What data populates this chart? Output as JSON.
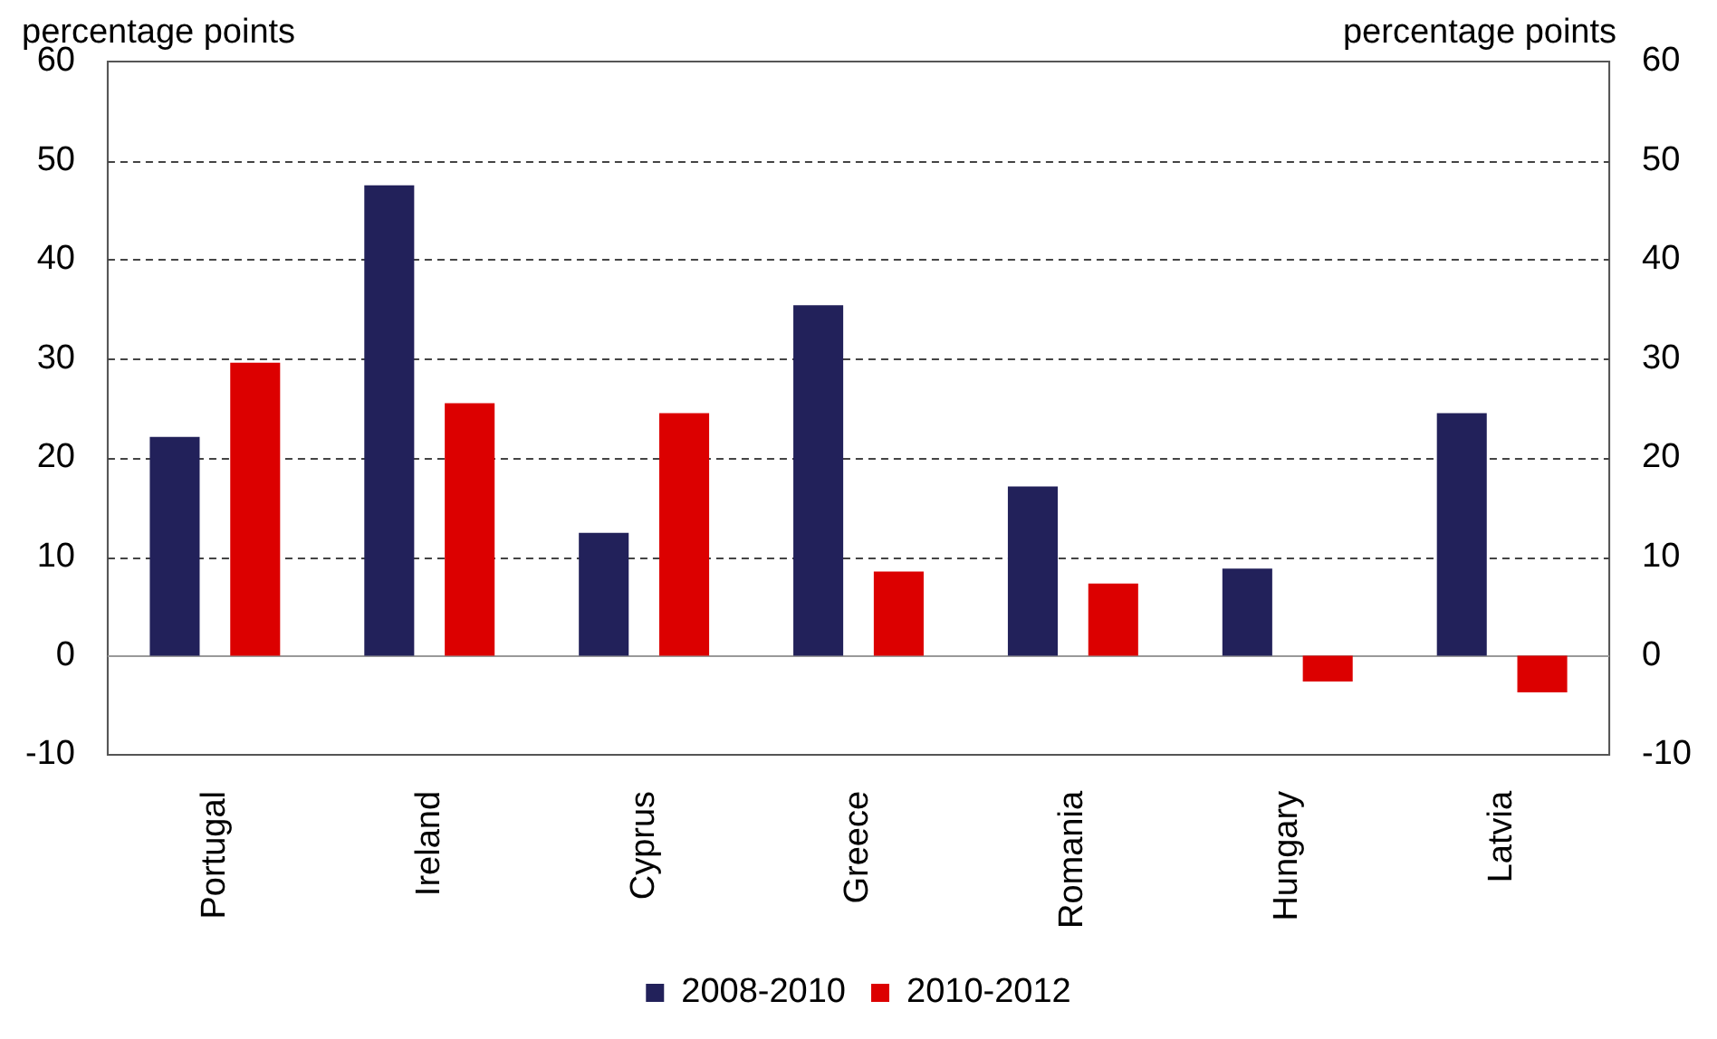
{
  "chart_data": {
    "type": "bar",
    "ylabel": "percentage points",
    "y2label": "percentage points",
    "categories": [
      "Portugal",
      "Ireland",
      "Cyprus",
      "Greece",
      "Romania",
      "Hungary",
      "Latvia"
    ],
    "series": [
      {
        "name": "2008-2010",
        "color": "#22215a",
        "values": [
          22.1,
          47.5,
          12.4,
          35.4,
          17.1,
          8.8,
          24.5
        ]
      },
      {
        "name": "2010-2012",
        "color": "#dc0000",
        "values": [
          29.6,
          25.5,
          24.5,
          8.5,
          7.3,
          -2.6,
          -3.7
        ]
      }
    ],
    "ylim": [
      -10,
      60
    ],
    "yticks": [
      -10,
      0,
      10,
      20,
      30,
      40,
      50,
      60
    ],
    "y2lim": [
      -10,
      60
    ],
    "y2ticks": [
      -10,
      0,
      10,
      20,
      30,
      40,
      50,
      60
    ],
    "grid": "y",
    "line_style": "dashed",
    "legend": "bottom"
  }
}
